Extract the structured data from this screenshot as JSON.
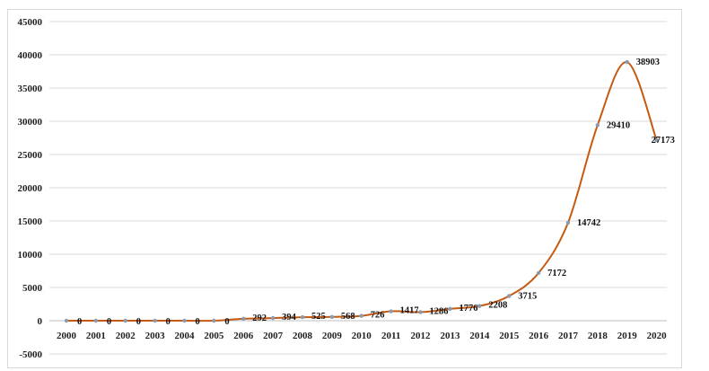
{
  "chart_data": {
    "type": "line",
    "title": "",
    "xlabel": "",
    "ylabel": "",
    "categories": [
      "2000",
      "2001",
      "2002",
      "2003",
      "2004",
      "2005",
      "2006",
      "2007",
      "2008",
      "2009",
      "2010",
      "2011",
      "2012",
      "2013",
      "2014",
      "2015",
      "2016",
      "2017",
      "2018",
      "2019",
      "2020"
    ],
    "series": [
      {
        "values": [
          0,
          0,
          0,
          0,
          0,
          0,
          292,
          394,
          525,
          568,
          726,
          1417,
          1286,
          1776,
          2208,
          3715,
          7172,
          14742,
          29410,
          38903,
          27173
        ],
        "color": "#c55a11"
      }
    ],
    "ylim": [
      -5000,
      45000
    ],
    "yticks": [
      -5000,
      0,
      5000,
      10000,
      15000,
      20000,
      25000,
      30000,
      35000,
      40000,
      45000
    ],
    "grid": true,
    "legend": "none",
    "smooth": true
  }
}
